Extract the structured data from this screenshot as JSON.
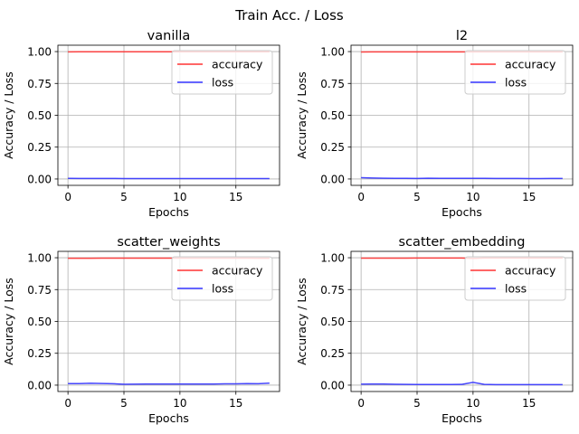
{
  "figure": {
    "title": "Train Acc. / Loss"
  },
  "colors": {
    "accuracy": "#ff3333",
    "loss": "#3333ff",
    "grid": "#b0b0b0"
  },
  "chart_data": [
    {
      "type": "line",
      "title": "vanilla",
      "xlabel": "Epochs",
      "ylabel": "Accuracy / Loss",
      "xlim": [
        -0.9,
        18.9
      ],
      "ylim": [
        -0.05,
        1.05
      ],
      "xticks": [
        0,
        5,
        10,
        15
      ],
      "yticks": [
        0.0,
        0.25,
        0.5,
        0.75,
        1.0
      ],
      "ytick_labels": [
        "0.00",
        "0.25",
        "0.50",
        "0.75",
        "1.00"
      ],
      "grid": true,
      "legend": "upper right",
      "x": [
        0,
        1,
        2,
        3,
        4,
        5,
        6,
        7,
        8,
        9,
        10,
        11,
        12,
        13,
        14,
        15,
        16,
        17,
        18
      ],
      "series": [
        {
          "name": "accuracy",
          "color": "#ff3333",
          "values": [
            0.998,
            0.999,
            0.999,
            0.999,
            0.999,
            0.999,
            0.999,
            0.999,
            0.999,
            0.999,
            0.999,
            0.999,
            0.999,
            0.999,
            0.999,
            0.999,
            0.999,
            0.999,
            0.999
          ]
        },
        {
          "name": "loss",
          "color": "#3333ff",
          "values": [
            0.005,
            0.004,
            0.004,
            0.004,
            0.004,
            0.003,
            0.003,
            0.003,
            0.003,
            0.003,
            0.003,
            0.003,
            0.003,
            0.003,
            0.003,
            0.003,
            0.003,
            0.003,
            0.003
          ]
        }
      ]
    },
    {
      "type": "line",
      "title": "l2",
      "xlabel": "Epochs",
      "ylabel": "Accuracy / Loss",
      "xlim": [
        -0.9,
        18.9
      ],
      "ylim": [
        -0.05,
        1.05
      ],
      "xticks": [
        0,
        5,
        10,
        15
      ],
      "yticks": [
        0.0,
        0.25,
        0.5,
        0.75,
        1.0
      ],
      "ytick_labels": [
        "0.00",
        "0.25",
        "0.50",
        "0.75",
        "1.00"
      ],
      "grid": true,
      "legend": "upper right",
      "x": [
        0,
        1,
        2,
        3,
        4,
        5,
        6,
        7,
        8,
        9,
        10,
        11,
        12,
        13,
        14,
        15,
        16,
        17,
        18
      ],
      "series": [
        {
          "name": "accuracy",
          "color": "#ff3333",
          "values": [
            0.997,
            0.998,
            0.998,
            0.998,
            0.998,
            0.998,
            0.998,
            0.998,
            0.998,
            0.998,
            0.998,
            0.998,
            0.998,
            0.998,
            0.998,
            0.998,
            0.998,
            0.998,
            0.998
          ]
        },
        {
          "name": "loss",
          "color": "#3333ff",
          "values": [
            0.01,
            0.008,
            0.006,
            0.005,
            0.005,
            0.004,
            0.006,
            0.005,
            0.005,
            0.005,
            0.005,
            0.005,
            0.004,
            0.004,
            0.004,
            0.003,
            0.003,
            0.004,
            0.004
          ]
        }
      ]
    },
    {
      "type": "line",
      "title": "scatter_weights",
      "xlabel": "Epochs",
      "ylabel": "Accuracy / Loss",
      "xlim": [
        -0.9,
        18.9
      ],
      "ylim": [
        -0.05,
        1.05
      ],
      "xticks": [
        0,
        5,
        10,
        15
      ],
      "yticks": [
        0.0,
        0.25,
        0.5,
        0.75,
        1.0
      ],
      "ytick_labels": [
        "0.00",
        "0.25",
        "0.50",
        "0.75",
        "1.00"
      ],
      "grid": true,
      "legend": "upper right",
      "x": [
        0,
        1,
        2,
        3,
        4,
        5,
        6,
        7,
        8,
        9,
        10,
        11,
        12,
        13,
        14,
        15,
        16,
        17,
        18
      ],
      "series": [
        {
          "name": "accuracy",
          "color": "#ff3333",
          "values": [
            0.996,
            0.996,
            0.996,
            0.997,
            0.997,
            0.997,
            0.997,
            0.997,
            0.997,
            0.997,
            0.997,
            0.997,
            0.997,
            0.997,
            0.997,
            0.997,
            0.997,
            0.996,
            0.996
          ]
        },
        {
          "name": "loss",
          "color": "#3333ff",
          "values": [
            0.012,
            0.012,
            0.015,
            0.013,
            0.011,
            0.007,
            0.008,
            0.009,
            0.009,
            0.009,
            0.009,
            0.009,
            0.009,
            0.009,
            0.01,
            0.01,
            0.012,
            0.011,
            0.016
          ]
        }
      ]
    },
    {
      "type": "line",
      "title": "scatter_embedding",
      "xlabel": "Epochs",
      "ylabel": "Accuracy / Loss",
      "xlim": [
        -0.9,
        18.9
      ],
      "ylim": [
        -0.05,
        1.05
      ],
      "xticks": [
        0,
        5,
        10,
        15
      ],
      "yticks": [
        0.0,
        0.25,
        0.5,
        0.75,
        1.0
      ],
      "ytick_labels": [
        "0.00",
        "0.25",
        "0.50",
        "0.75",
        "1.00"
      ],
      "grid": true,
      "legend": "upper right",
      "x": [
        0,
        1,
        2,
        3,
        4,
        5,
        6,
        7,
        8,
        9,
        10,
        11,
        12,
        13,
        14,
        15,
        16,
        17,
        18
      ],
      "series": [
        {
          "name": "accuracy",
          "color": "#ff3333",
          "values": [
            0.997,
            0.997,
            0.997,
            0.997,
            0.997,
            0.998,
            0.998,
            0.998,
            0.998,
            0.998,
            0.994,
            0.998,
            0.998,
            0.998,
            0.998,
            0.998,
            0.998,
            0.998,
            0.998
          ]
        },
        {
          "name": "loss",
          "color": "#3333ff",
          "values": [
            0.008,
            0.009,
            0.009,
            0.007,
            0.006,
            0.005,
            0.005,
            0.005,
            0.005,
            0.006,
            0.022,
            0.006,
            0.004,
            0.004,
            0.004,
            0.004,
            0.004,
            0.004,
            0.004
          ]
        }
      ]
    }
  ]
}
